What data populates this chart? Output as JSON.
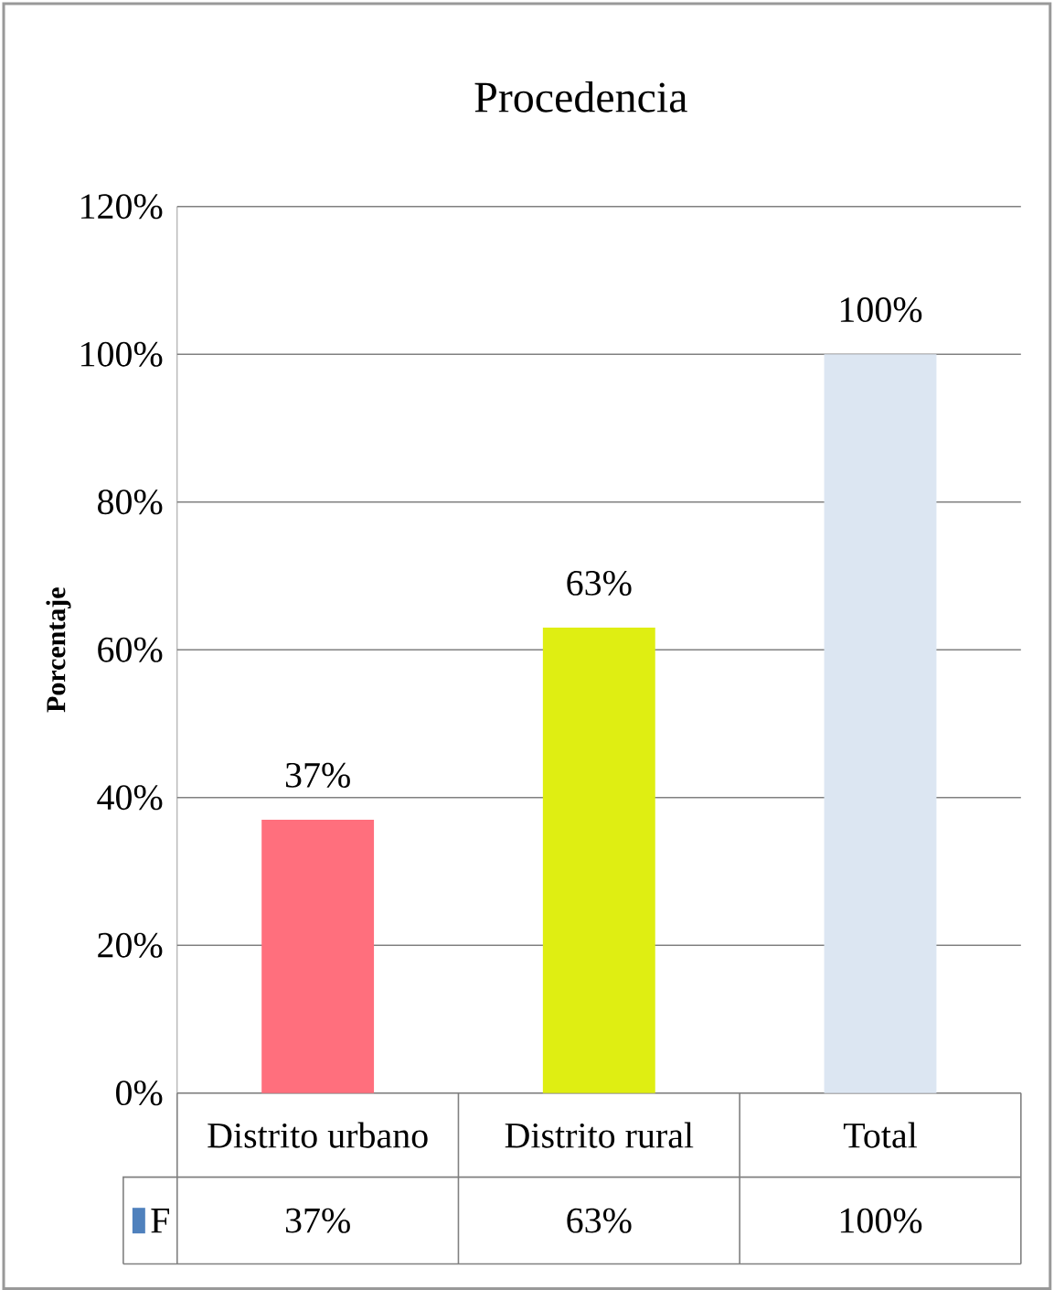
{
  "chart_data": {
    "type": "bar",
    "title": "Procedencia",
    "ylabel": "Porcentaje",
    "categories": [
      "Distrito urbano",
      "Distrito rural",
      "Total"
    ],
    "series": [
      {
        "name": "F",
        "color": "#4f81bd",
        "colors": [
          "#ff6f7d",
          "#dfee12",
          "#dce6f2"
        ],
        "values": [
          37,
          63,
          100
        ],
        "value_labels": [
          "37%",
          "63%",
          "100%"
        ]
      }
    ],
    "ylim": [
      0,
      120
    ],
    "yticks": [
      {
        "value": 0,
        "label": "0%"
      },
      {
        "value": 20,
        "label": "20%"
      },
      {
        "value": 40,
        "label": "40%"
      },
      {
        "value": 60,
        "label": "60%"
      },
      {
        "value": 80,
        "label": "80%"
      },
      {
        "value": 100,
        "label": "100%"
      },
      {
        "value": 120,
        "label": "120%"
      }
    ],
    "grid": "y",
    "legend": "bottom"
  }
}
